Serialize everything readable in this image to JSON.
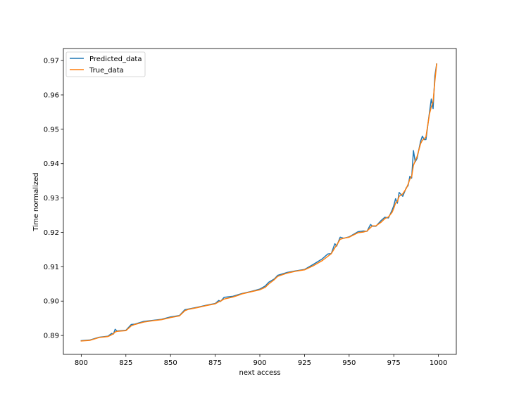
{
  "chart_data": {
    "type": "line",
    "title": "",
    "xlabel": "next access",
    "ylabel": "Time normalized",
    "xlim": [
      790,
      1010
    ],
    "ylim": [
      0.8845,
      0.9735
    ],
    "x_ticks": [
      800,
      825,
      850,
      875,
      900,
      925,
      950,
      975,
      1000
    ],
    "x_tick_labels": [
      "800",
      "825",
      "850",
      "875",
      "900",
      "925",
      "950",
      "975",
      "1000"
    ],
    "y_ticks": [
      0.89,
      0.9,
      0.91,
      0.92,
      0.93,
      0.94,
      0.95,
      0.96,
      0.97
    ],
    "y_tick_labels": [
      "0.89",
      "0.90",
      "0.91",
      "0.92",
      "0.93",
      "0.94",
      "0.95",
      "0.96",
      "0.97"
    ],
    "grid": false,
    "legend_position": "top-left",
    "series": [
      {
        "name": "Predicted_data",
        "color": "#1f77b4",
        "x": [
          800,
          805,
          810,
          815,
          817,
          818,
          819,
          820,
          825,
          828,
          830,
          835,
          840,
          845,
          850,
          855,
          858,
          860,
          865,
          870,
          875,
          877,
          878,
          880,
          885,
          888,
          890,
          895,
          900,
          903,
          905,
          908,
          910,
          915,
          920,
          925,
          930,
          935,
          938,
          940,
          942,
          943,
          945,
          947,
          950,
          955,
          958,
          960,
          962,
          963,
          965,
          968,
          970,
          972,
          974,
          975,
          976,
          977,
          978,
          980,
          982,
          983,
          984,
          985,
          986,
          987,
          988,
          990,
          991,
          992,
          993,
          995,
          996,
          997,
          998,
          999
        ],
        "values": [
          0.8885,
          0.8887,
          0.8895,
          0.8898,
          0.8906,
          0.8904,
          0.8918,
          0.8913,
          0.8915,
          0.8932,
          0.8933,
          0.8941,
          0.8944,
          0.8947,
          0.8954,
          0.8958,
          0.8975,
          0.8977,
          0.8982,
          0.8988,
          0.8993,
          0.9002,
          0.8999,
          0.9011,
          0.9014,
          0.9019,
          0.9022,
          0.9028,
          0.9035,
          0.9044,
          0.9055,
          0.9064,
          0.9075,
          0.9083,
          0.9088,
          0.9092,
          0.9107,
          0.9123,
          0.9137,
          0.9138,
          0.9167,
          0.916,
          0.9186,
          0.9183,
          0.9187,
          0.9202,
          0.9204,
          0.9203,
          0.9223,
          0.9218,
          0.9218,
          0.9235,
          0.9244,
          0.9242,
          0.9264,
          0.9278,
          0.9298,
          0.9285,
          0.9316,
          0.9305,
          0.933,
          0.9336,
          0.9363,
          0.9358,
          0.9438,
          0.9405,
          0.9415,
          0.9465,
          0.948,
          0.947,
          0.947,
          0.955,
          0.9588,
          0.956,
          0.9655,
          0.969
        ]
      },
      {
        "name": "True_data",
        "color": "#ff7f0e",
        "x": [
          800,
          805,
          810,
          815,
          817,
          818,
          819,
          820,
          825,
          828,
          830,
          835,
          840,
          845,
          850,
          855,
          858,
          860,
          865,
          870,
          875,
          877,
          878,
          880,
          885,
          888,
          890,
          895,
          900,
          903,
          905,
          908,
          910,
          915,
          920,
          925,
          930,
          935,
          938,
          940,
          942,
          943,
          945,
          947,
          950,
          955,
          958,
          960,
          962,
          963,
          965,
          968,
          970,
          972,
          974,
          975,
          976,
          977,
          978,
          980,
          982,
          983,
          984,
          985,
          986,
          987,
          988,
          990,
          991,
          992,
          993,
          995,
          996,
          997,
          998,
          999
        ],
        "values": [
          0.8884,
          0.8886,
          0.8894,
          0.8897,
          0.8902,
          0.8905,
          0.891,
          0.8912,
          0.8914,
          0.8928,
          0.8932,
          0.8939,
          0.8943,
          0.8946,
          0.8952,
          0.8957,
          0.8972,
          0.8976,
          0.8981,
          0.8987,
          0.8992,
          0.8998,
          0.9,
          0.9006,
          0.9012,
          0.9017,
          0.9021,
          0.9027,
          0.9033,
          0.904,
          0.905,
          0.9062,
          0.9072,
          0.9081,
          0.9087,
          0.9091,
          0.9103,
          0.9118,
          0.913,
          0.9138,
          0.9155,
          0.9163,
          0.918,
          0.9183,
          0.9186,
          0.9199,
          0.9201,
          0.9204,
          0.9214,
          0.9219,
          0.9219,
          0.923,
          0.924,
          0.9245,
          0.9258,
          0.927,
          0.9285,
          0.929,
          0.9305,
          0.9312,
          0.9328,
          0.934,
          0.9355,
          0.9362,
          0.9395,
          0.9408,
          0.942,
          0.9458,
          0.9468,
          0.9472,
          0.9478,
          0.9545,
          0.9565,
          0.958,
          0.964,
          0.969
        ]
      }
    ]
  }
}
